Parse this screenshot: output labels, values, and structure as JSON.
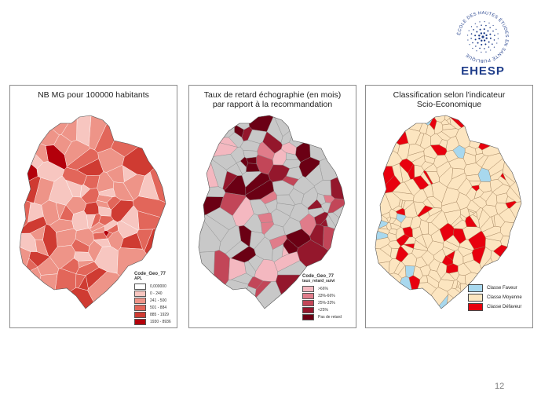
{
  "logo": {
    "ring_text": "ÉCOLE DES HAUTES ÉTUDES EN SANTÉ PUBLIQUE",
    "name": "EHESP",
    "color": "#1f3d8a"
  },
  "page_number": "12",
  "maps": [
    {
      "title": "NB MG pour 100000 habitants",
      "legend": {
        "code": "Code_Geo_77",
        "field": "APL",
        "classes": [
          {
            "label": "0,000000",
            "color": "#ffffff"
          },
          {
            "label": "0 - 240",
            "color": "#f7c6c0"
          },
          {
            "label": "241 - 500",
            "color": "#ee9488"
          },
          {
            "label": "501 - 884",
            "color": "#e2665a"
          },
          {
            "label": "885 - 1929",
            "color": "#cf3b32"
          },
          {
            "label": "1930 - 8936",
            "color": "#b3000b"
          }
        ]
      }
    },
    {
      "title": "Taux de retard échographie (en mois)\npar rapport à la recommandation",
      "legend": {
        "code": "Code_Geo_77",
        "field": "taux_retard_suivi",
        "classes": [
          {
            "label": ">66%",
            "color": "#f4b8c0"
          },
          {
            "label": "33%-66%",
            "color": "#e07c8a"
          },
          {
            "label": "25%-33%",
            "color": "#c24658"
          },
          {
            "label": "<25%",
            "color": "#94172c"
          },
          {
            "label": "Pas de retard",
            "color": "#6b0014"
          }
        ],
        "no_data_color": "#c8c8c8"
      }
    },
    {
      "title": "Classification selon l'indicateur\nScio-Economique",
      "legend": {
        "classes": [
          {
            "label": "Classe Faveur",
            "color": "#a8d8ee"
          },
          {
            "label": "Classe Moyenne",
            "color": "#fce5c0"
          },
          {
            "label": "Classe Défaveur",
            "color": "#e8000e"
          }
        ]
      }
    }
  ]
}
